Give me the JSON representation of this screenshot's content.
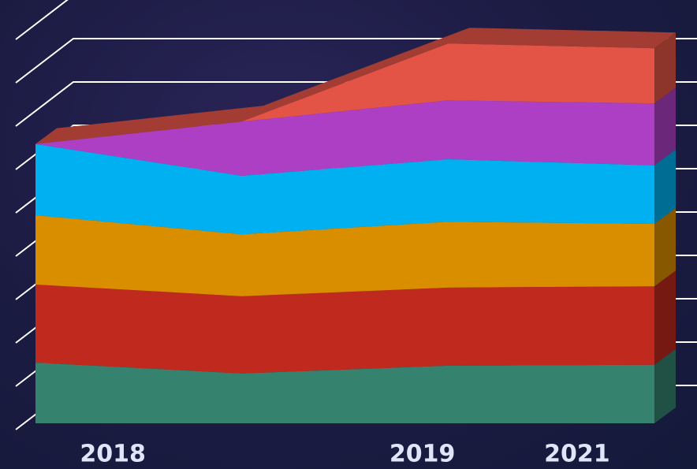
{
  "chart_data": {
    "type": "area3d",
    "categories": [
      "2018",
      null,
      "2019",
      "2021"
    ],
    "series": [
      {
        "color": "#35826e",
        "values": [
          14,
          11.5,
          13.3,
          13.5
        ]
      },
      {
        "color": "#c0291e",
        "values": [
          18,
          17.8,
          18,
          18.1
        ]
      },
      {
        "color": "#d98e00",
        "values": [
          16,
          14.3,
          15.2,
          14.4
        ]
      },
      {
        "color": "#00b0f0",
        "values": [
          16.4,
          13.5,
          14.4,
          13.5
        ]
      },
      {
        "color": "#ad3fc4",
        "values": [
          0,
          12.5,
          13.6,
          14.3
        ]
      },
      {
        "color": "#e35446",
        "values": [
          0,
          0,
          13.1,
          12.7
        ]
      }
    ],
    "stacked": true,
    "ylim": [
      0,
      95
    ],
    "yticks": [
      0,
      10,
      20,
      30,
      40,
      50,
      60,
      70,
      80,
      90
    ],
    "grid": true
  }
}
